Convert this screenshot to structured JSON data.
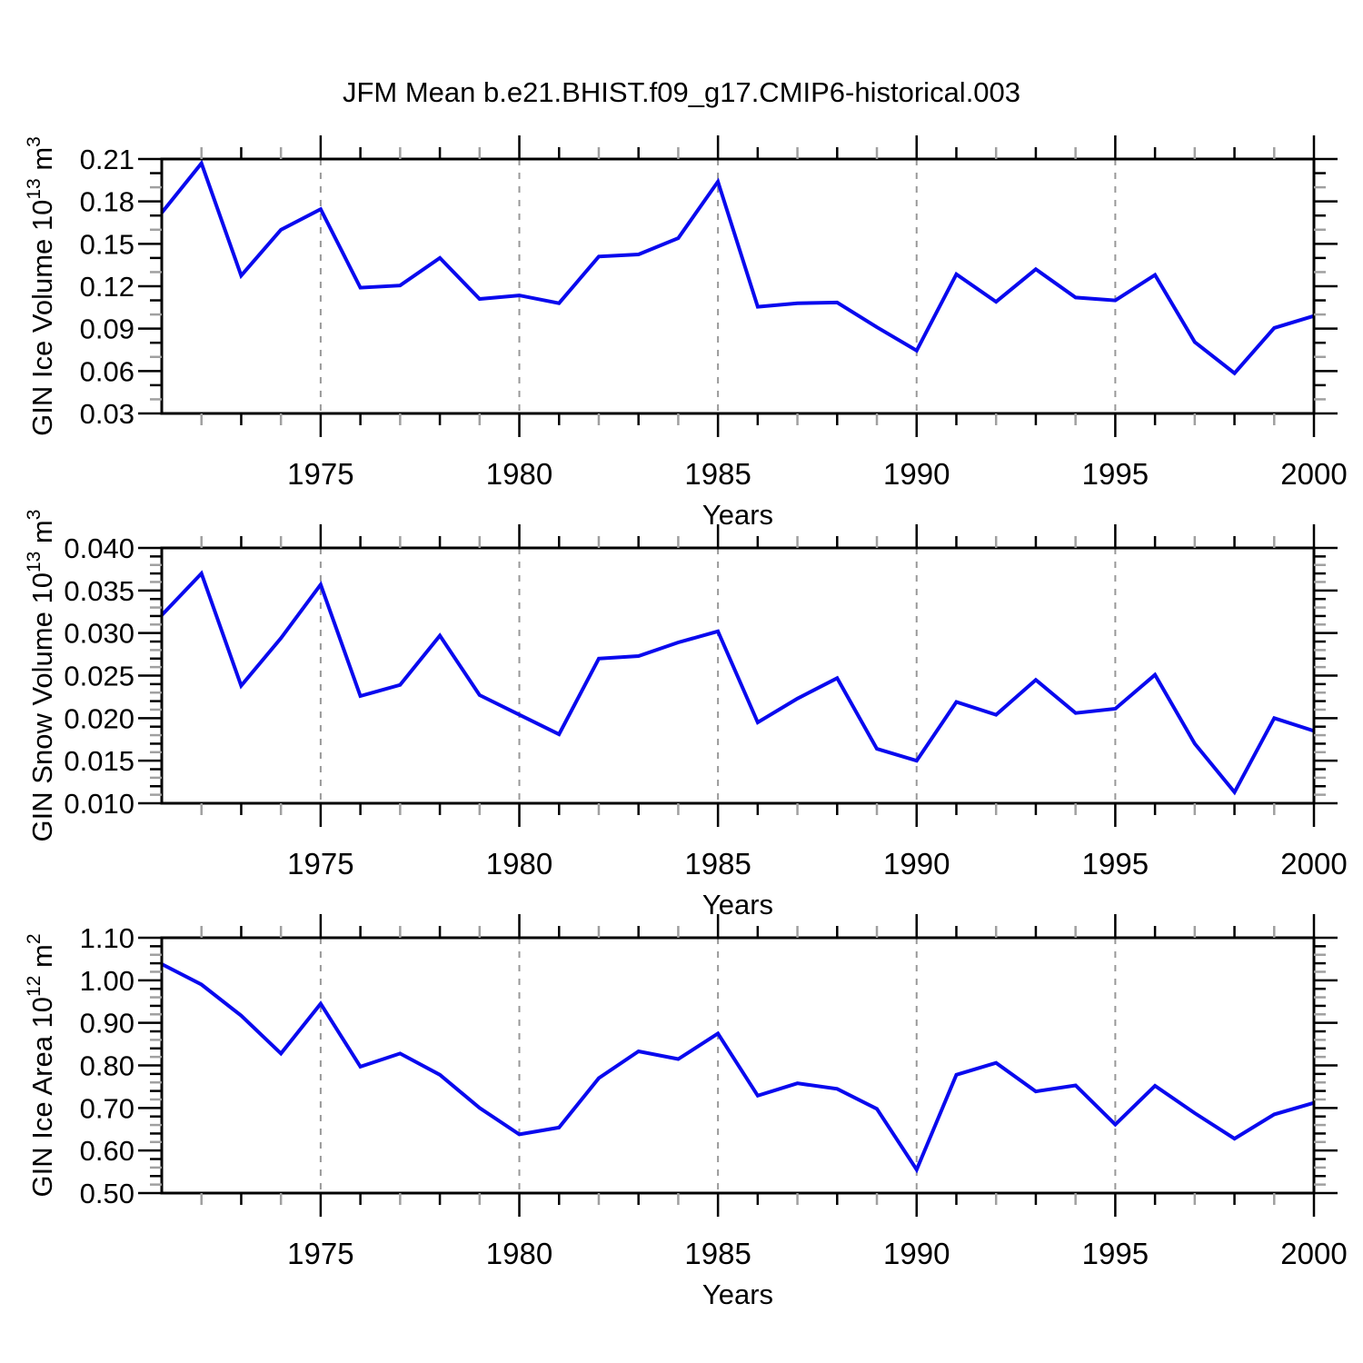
{
  "title": "JFM Mean b.e21.BHIST.f09_g17.CMIP6-historical.003",
  "styles": {
    "line_color": "#0909ee",
    "dashed_gridline_color": "#999999",
    "axis_color": "#000000",
    "minor_tick_gray": "#a0a0a0",
    "background": "#ffffff"
  },
  "chart_data": [
    {
      "type": "line",
      "panel": "top",
      "ylabel_text": "GIN Ice Volume 10^13 m^3",
      "ylabel_parts": {
        "base": "GIN Ice Volume 10",
        "sup1": "13",
        "mid": " m",
        "sup2": "3"
      },
      "xlabel": "Years",
      "x": [
        1971,
        1972,
        1973,
        1974,
        1975,
        1976,
        1977,
        1978,
        1979,
        1980,
        1981,
        1982,
        1983,
        1984,
        1985,
        1986,
        1987,
        1988,
        1989,
        1990,
        1991,
        1992,
        1993,
        1994,
        1995,
        1996,
        1997,
        1998,
        1999,
        2000
      ],
      "values": [
        0.172,
        0.207,
        0.1275,
        0.16,
        0.1745,
        0.119,
        0.1205,
        0.14,
        0.111,
        0.1135,
        0.108,
        0.141,
        0.1425,
        0.154,
        0.194,
        0.1055,
        0.108,
        0.1085,
        0.091,
        0.0745,
        0.1285,
        0.109,
        0.132,
        0.112,
        0.11,
        0.128,
        0.0805,
        0.0585,
        0.0905,
        0.099
      ],
      "xlim": [
        1971,
        2000
      ],
      "ylim": [
        0.03,
        0.21
      ],
      "ytick_major": 0.03,
      "ytick_minor": 0.01,
      "ytick_decimals": 2,
      "ytick_labels": [
        "0.21",
        "0.18",
        "0.15",
        "0.12",
        "0.09",
        "0.06",
        "0.03"
      ],
      "xtick_labels": [
        "1975",
        "1980",
        "1985",
        "1990",
        "1995",
        "2000"
      ],
      "dashed_gridlines_x": [
        1975,
        1980,
        1985,
        1990,
        1995
      ],
      "grid": "vertical-dashed",
      "legend": "none"
    },
    {
      "type": "line",
      "panel": "middle",
      "ylabel_text": "GIN Snow Volume 10^13 m^3",
      "ylabel_parts": {
        "base": "GIN Snow Volume 10",
        "sup1": "13",
        "mid": " m",
        "sup2": "3"
      },
      "xlabel": "Years",
      "x": [
        1971,
        1972,
        1973,
        1974,
        1975,
        1976,
        1977,
        1978,
        1979,
        1980,
        1981,
        1982,
        1983,
        1984,
        1985,
        1986,
        1987,
        1988,
        1989,
        1990,
        1991,
        1992,
        1993,
        1994,
        1995,
        1996,
        1997,
        1998,
        1999,
        2000
      ],
      "values": [
        0.0321,
        0.037,
        0.0238,
        0.0294,
        0.0357,
        0.0226,
        0.0239,
        0.0297,
        0.0227,
        0.0204,
        0.0181,
        0.027,
        0.0273,
        0.0289,
        0.0302,
        0.0195,
        0.0223,
        0.0247,
        0.0164,
        0.015,
        0.0219,
        0.0204,
        0.0245,
        0.0206,
        0.0211,
        0.0251,
        0.017,
        0.0113,
        0.02,
        0.0185
      ],
      "xlim": [
        1971,
        2000
      ],
      "ylim": [
        0.01,
        0.04
      ],
      "ytick_major": 0.005,
      "ytick_minor": 0.001,
      "ytick_decimals": 3,
      "ytick_labels": [
        "0.040",
        "0.035",
        "0.030",
        "0.025",
        "0.020",
        "0.015",
        "0.010"
      ],
      "xtick_labels": [
        "1975",
        "1980",
        "1985",
        "1990",
        "1995",
        "2000"
      ],
      "dashed_gridlines_x": [
        1975,
        1980,
        1985,
        1990,
        1995
      ],
      "grid": "vertical-dashed",
      "legend": "none"
    },
    {
      "type": "line",
      "panel": "bottom",
      "ylabel_text": "GIN Ice Area 10^12 m^2",
      "ylabel_parts": {
        "base": "GIN Ice Area 10",
        "sup1": "12",
        "mid": " m",
        "sup2": "2"
      },
      "xlabel": "Years",
      "x": [
        1971,
        1972,
        1973,
        1974,
        1975,
        1976,
        1977,
        1978,
        1979,
        1980,
        1981,
        1982,
        1983,
        1984,
        1985,
        1986,
        1987,
        1988,
        1989,
        1990,
        1991,
        1992,
        1993,
        1994,
        1995,
        1996,
        1997,
        1998,
        1999,
        2000
      ],
      "values": [
        1.038,
        0.99,
        0.917,
        0.828,
        0.945,
        0.797,
        0.828,
        0.778,
        0.7,
        0.638,
        0.654,
        0.77,
        0.833,
        0.815,
        0.875,
        0.729,
        0.758,
        0.745,
        0.698,
        0.555,
        0.778,
        0.806,
        0.739,
        0.753,
        0.661,
        0.752,
        0.688,
        0.628,
        0.685,
        0.712
      ],
      "xlim": [
        1971,
        2000
      ],
      "ylim": [
        0.5,
        1.1
      ],
      "ytick_major": 0.1,
      "ytick_minor": 0.02,
      "ytick_decimals": 2,
      "ytick_labels": [
        "1.10",
        "1.00",
        "0.90",
        "0.80",
        "0.70",
        "0.60",
        "0.50"
      ],
      "xtick_labels": [
        "1975",
        "1980",
        "1985",
        "1990",
        "1995",
        "2000"
      ],
      "dashed_gridlines_x": [
        1975,
        1980,
        1985,
        1990,
        1995
      ],
      "grid": "vertical-dashed",
      "legend": "none"
    }
  ]
}
